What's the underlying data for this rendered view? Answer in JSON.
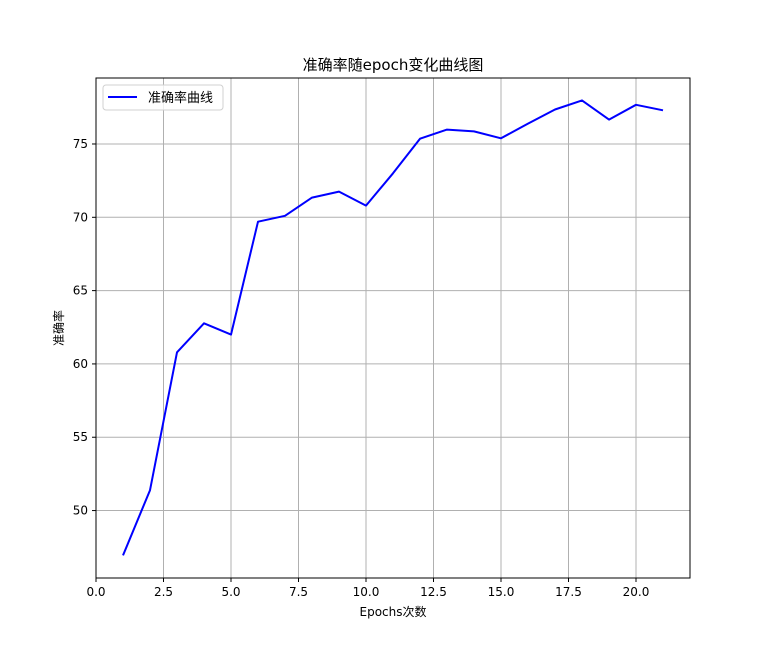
{
  "chart_data": {
    "type": "line",
    "title": "准确率随epoch变化曲线图",
    "xlabel": "Epochs次数",
    "ylabel": "准确率",
    "xlim": [
      0,
      22
    ],
    "ylim": [
      45.4,
      79.5
    ],
    "xticks": [
      0,
      2.5,
      5,
      7.5,
      10,
      12.5,
      15,
      17.5,
      20
    ],
    "xtick_labels": [
      "0.0",
      "2.5",
      "5.0",
      "7.5",
      "10.0",
      "12.5",
      "15.0",
      "17.5",
      "20.0"
    ],
    "yticks": [
      50,
      55,
      60,
      65,
      70,
      75
    ],
    "ytick_labels": [
      "50",
      "55",
      "60",
      "65",
      "70",
      "75"
    ],
    "grid": true,
    "legend": "top-left",
    "series": [
      {
        "name": "准确率曲线",
        "color": "#0000ff",
        "x": [
          1,
          2,
          3,
          4,
          5,
          6,
          7,
          8,
          9,
          10,
          11,
          12,
          13,
          14,
          15,
          16,
          17,
          18,
          19,
          20,
          21
        ],
        "y": [
          46.94,
          51.39,
          60.79,
          62.77,
          62.0,
          69.7,
          70.1,
          71.34,
          71.75,
          70.8,
          73.0,
          75.36,
          75.98,
          75.86,
          75.39,
          76.39,
          77.35,
          77.97,
          76.66,
          77.67,
          77.3
        ]
      }
    ]
  }
}
